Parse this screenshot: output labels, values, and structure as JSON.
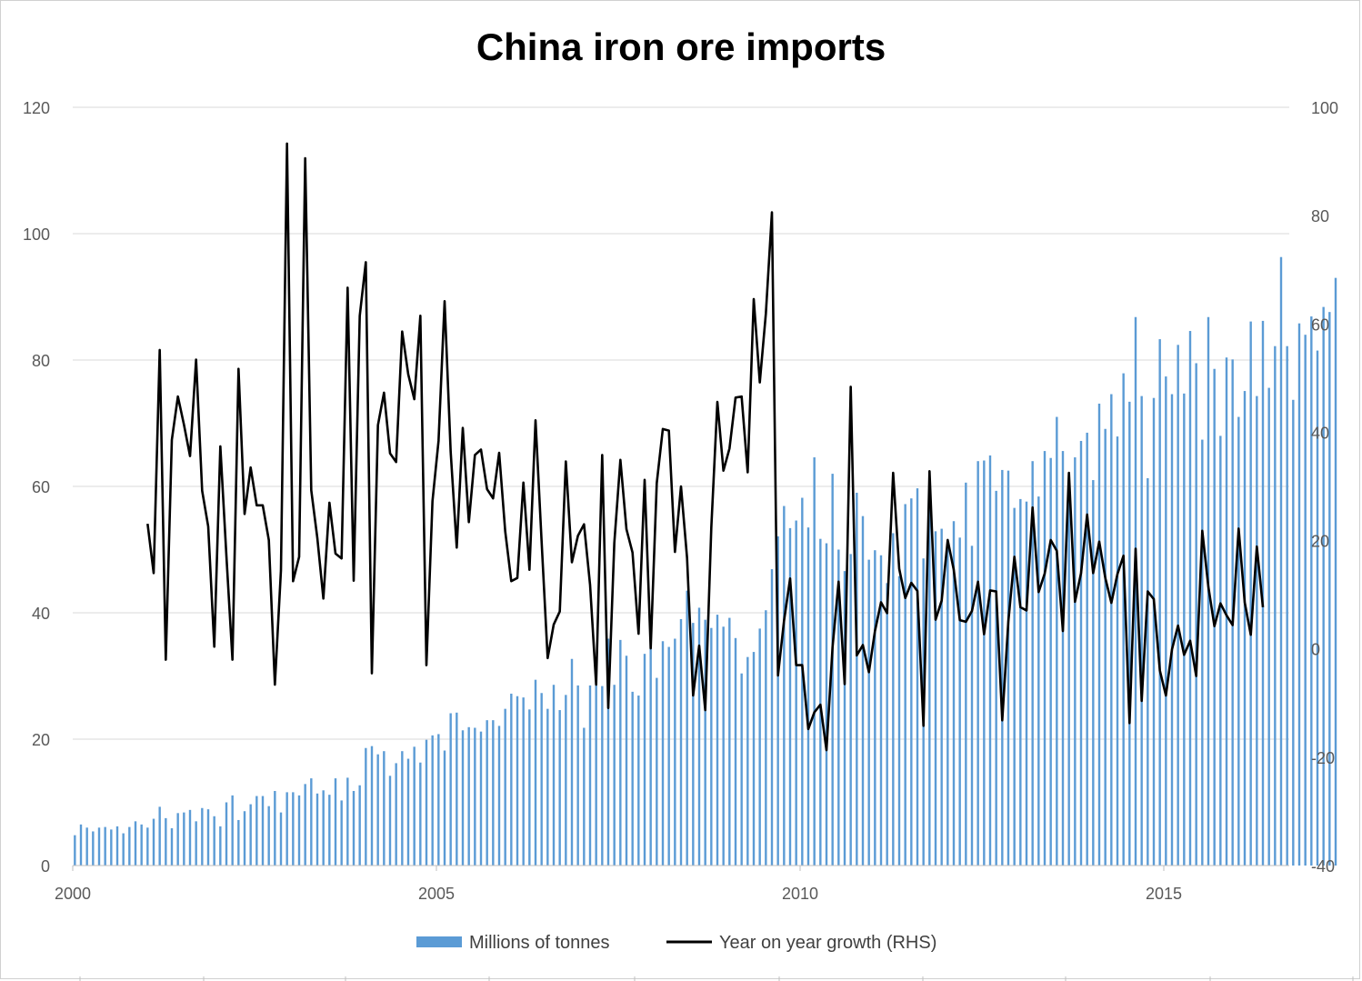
{
  "chart_data": {
    "type": "bar+line",
    "title": "China iron ore imports",
    "x_axis": {
      "start_year": 2000,
      "end_year": 2016.75,
      "tick_labels": [
        "2000",
        "2005",
        "2010",
        "2015"
      ]
    },
    "y_left": {
      "min": 0,
      "max": 120,
      "step": 20,
      "tick_labels": [
        "0",
        "20",
        "40",
        "60",
        "80",
        "100",
        "120"
      ]
    },
    "y_right": {
      "min": -40,
      "max": 100,
      "step": 20,
      "tick_labels": [
        "-40",
        "-20",
        "0",
        "20",
        "40",
        "60",
        "80",
        "100"
      ]
    },
    "gridlines": true,
    "legend_position": "bottom",
    "series": [
      {
        "name": "Millions of tonnes",
        "type": "bar",
        "axis": "left",
        "color": "#5b9bd5",
        "start": "2000-01",
        "frequency": "monthly",
        "values": [
          4.8,
          6.5,
          6.0,
          5.4,
          6.0,
          6.1,
          5.7,
          6.2,
          5.1,
          6.1,
          7.0,
          6.5,
          6.0,
          7.4,
          9.3,
          7.5,
          5.9,
          8.3,
          8.4,
          8.8,
          7.0,
          9.1,
          8.9,
          7.8,
          6.2,
          10.0,
          11.1,
          7.2,
          8.6,
          9.7,
          11.0,
          11.0,
          9.4,
          11.8,
          8.4,
          11.6,
          11.6,
          11.1,
          12.9,
          13.8,
          11.4,
          11.9,
          11.2,
          13.8,
          10.3,
          13.9,
          11.8,
          12.7,
          18.6,
          18.9,
          17.6,
          18.1,
          14.2,
          16.2,
          18.1,
          16.9,
          18.8,
          16.3,
          19.9,
          20.6,
          20.8,
          18.2,
          24.1,
          24.2,
          21.4,
          21.9,
          21.8,
          21.2,
          23.0,
          23.0,
          22.1,
          24.8,
          27.2,
          26.8,
          26.6,
          24.7,
          29.4,
          27.3,
          24.8,
          28.6,
          24.6,
          27.0,
          32.7,
          28.5,
          21.8,
          28.5,
          28.5,
          28.4,
          35.9,
          28.6,
          35.7,
          33.2,
          27.5,
          26.9,
          33.5,
          34.9,
          29.7,
          35.5,
          34.6,
          35.9,
          39.0,
          43.5,
          38.4,
          40.8,
          38.9,
          37.6,
          39.7,
          37.8,
          39.2,
          36.0,
          30.4,
          33.0,
          33.8,
          37.5,
          40.4,
          46.9,
          52.1,
          56.9,
          53.4,
          54.6,
          58.2,
          53.5,
          64.6,
          51.7,
          51.0,
          62.0,
          50.0,
          46.6,
          49.3,
          59.0,
          55.3,
          48.4,
          49.9,
          49.1,
          44.7,
          52.6,
          45.8,
          57.2,
          58.1,
          59.7,
          48.6,
          59.3,
          52.9,
          53.3,
          51.0,
          54.5,
          51.9,
          60.6,
          50.6,
          64.0,
          64.1,
          64.9,
          59.3,
          62.6,
          62.5,
          56.6,
          58.0,
          57.6,
          64.0,
          58.4,
          65.6,
          64.5,
          71.0,
          65.6,
          58.5,
          64.6,
          67.2,
          68.5,
          61.0,
          73.1,
          69.1,
          74.6,
          67.9,
          77.9,
          73.4,
          86.8,
          74.3,
          61.3,
          74.0,
          83.3,
          77.4,
          74.6,
          82.4,
          74.7,
          84.6,
          79.5,
          67.4,
          86.8,
          78.6,
          68.0,
          80.4,
          80.1,
          71.0,
          75.1,
          86.1,
          74.3,
          86.2,
          75.6,
          82.2,
          96.3,
          82.2,
          73.7,
          85.8,
          84.0,
          86.9,
          81.5,
          88.4,
          87.6,
          93.0
        ]
      },
      {
        "name": "Year on year growth (RHS)",
        "type": "line",
        "axis": "right",
        "color": "#000000",
        "start": "2001-01",
        "frequency": "monthly",
        "values": [
          23.1,
          14.0,
          55.2,
          -2.0,
          38.6,
          46.6,
          41.4,
          35.6,
          53.4,
          29.2,
          22.6,
          0.4,
          37.4,
          17.2,
          -2.0,
          51.7,
          24.9,
          33.5,
          26.5,
          26.5,
          20.1,
          -6.6,
          14.5,
          93.3,
          12.5,
          17.0,
          90.6,
          29.3,
          20.5,
          9.3,
          27.0,
          17.6,
          16.7,
          66.7,
          12.6,
          61.5,
          71.4,
          -4.5,
          41.3,
          47.3,
          36.1,
          34.5,
          58.6,
          50.7,
          46.1,
          61.5,
          -3.0,
          27.3,
          38.4,
          64.2,
          36.4,
          18.7,
          40.8,
          23.4,
          35.8,
          36.8,
          29.5,
          27.8,
          36.2,
          21.7,
          12.5,
          13.1,
          30.7,
          14.6,
          42.2,
          19.9,
          -1.7,
          4.5,
          6.9,
          34.6,
          16.0,
          20.9,
          23.0,
          11.8,
          -6.6,
          35.8,
          -10.9,
          19.6,
          34.9,
          22.1,
          17.8,
          2.8,
          31.2,
          0.1,
          30.6,
          40.6,
          40.3,
          17.9,
          30.0,
          16.8,
          -8.6,
          0.6,
          -11.3,
          22.4,
          45.6,
          32.9,
          37.0,
          46.4,
          46.6,
          32.6,
          64.6,
          49.2,
          61.9,
          80.6,
          -4.9,
          5.2,
          13.0,
          -3.0,
          -3.0,
          -14.8,
          -11.7,
          -10.3,
          -18.7,
          0.3,
          12.4,
          -6.5,
          48.4,
          -1.2,
          0.7,
          -4.3,
          3.3,
          8.6,
          6.6,
          32.5,
          14.8,
          9.4,
          12.2,
          10.7,
          -14.2,
          32.8,
          5.4,
          8.9,
          20.1,
          14.6,
          5.3,
          5.0,
          7.0,
          12.4,
          2.7,
          10.8,
          10.6,
          -13.2,
          5.0,
          17.0,
          7.7,
          7.1,
          26.1,
          10.5,
          13.9,
          20.1,
          18.1,
          3.3,
          32.5,
          8.7,
          14.0,
          24.8,
          14.0,
          19.8,
          13.1,
          8.5,
          13.8,
          17.2,
          -13.7,
          18.5,
          -9.6,
          10.6,
          9.2,
          -4.0,
          -8.6,
          -0.1,
          4.3,
          -1.1,
          1.5,
          -5.0,
          21.8,
          11.5,
          4.2,
          8.4,
          6.2,
          4.4,
          22.2,
          8.6,
          2.6,
          18.9,
          7.7
        ]
      }
    ]
  }
}
